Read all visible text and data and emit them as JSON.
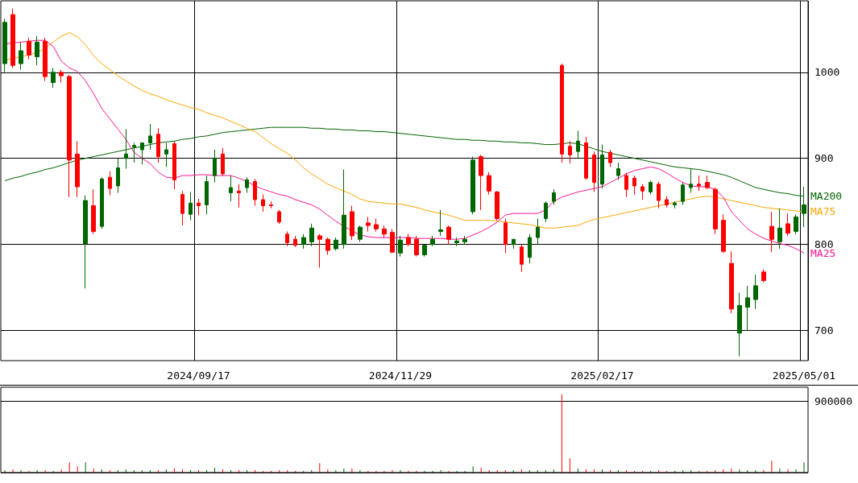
{
  "chart_data": [
    {
      "type": "candlestick",
      "categories": [
        null,
        null,
        null,
        null,
        null,
        null,
        null,
        null,
        null,
        null,
        null,
        null,
        null,
        null,
        null,
        null,
        null,
        null,
        null,
        null,
        null,
        null,
        null,
        null,
        "2024/09/17",
        null,
        null,
        null,
        null,
        null,
        null,
        null,
        null,
        null,
        null,
        null,
        null,
        null,
        null,
        null,
        null,
        null,
        null,
        null,
        null,
        null,
        null,
        null,
        null,
        "2024/11/29",
        null,
        null,
        null,
        null,
        null,
        null,
        null,
        null,
        null,
        null,
        null,
        null,
        null,
        null,
        null,
        null,
        null,
        null,
        null,
        null,
        null,
        null,
        null,
        null,
        "2025/02/17",
        null,
        null,
        null,
        null,
        null,
        null,
        null,
        null,
        null,
        null,
        null,
        null,
        null,
        null,
        null,
        null,
        null,
        null,
        null,
        null,
        null,
        null,
        null,
        null,
        "2025/05/01"
      ],
      "ohlc": [
        [
          1010,
          1062,
          1000,
          1058
        ],
        [
          1067,
          1074,
          1005,
          1008
        ],
        [
          1010,
          1035,
          1003,
          1025
        ],
        [
          1036,
          1040,
          1015,
          1020
        ],
        [
          1018,
          1042,
          1008,
          1035
        ],
        [
          1036,
          1040,
          990,
          995
        ],
        [
          988,
          1005,
          982,
          1000
        ],
        [
          1000,
          1003,
          988,
          996
        ],
        [
          995,
          997,
          855,
          898
        ],
        [
          905,
          920,
          855,
          867
        ],
        [
          801,
          857,
          749,
          851
        ],
        [
          845,
          864,
          812,
          815
        ],
        [
          821,
          878,
          818,
          876
        ],
        [
          878,
          885,
          857,
          865
        ],
        [
          868,
          900,
          860,
          889
        ],
        [
          900,
          934,
          888,
          905
        ],
        [
          913,
          918,
          895,
          915
        ],
        [
          910,
          918,
          893,
          918
        ],
        [
          918,
          940,
          910,
          926
        ],
        [
          928,
          935,
          895,
          902
        ],
        [
          905,
          918,
          890,
          910
        ],
        [
          917,
          920,
          864,
          875
        ],
        [
          858,
          862,
          822,
          836
        ],
        [
          835,
          861,
          828,
          848
        ],
        [
          848,
          853,
          834,
          845
        ],
        [
          846,
          880,
          835,
          873
        ],
        [
          880,
          910,
          872,
          900
        ],
        [
          905,
          912,
          880,
          882
        ],
        [
          860,
          880,
          850,
          866
        ],
        [
          862,
          870,
          843,
          860
        ],
        [
          866,
          878,
          860,
          875
        ],
        [
          873,
          876,
          845,
          852
        ],
        [
          852,
          858,
          838,
          845
        ],
        [
          846,
          850,
          842,
          845
        ],
        [
          838,
          840,
          824,
          826
        ],
        [
          812,
          815,
          798,
          802
        ],
        [
          806,
          810,
          797,
          799
        ],
        [
          800,
          812,
          795,
          808
        ],
        [
          803,
          824,
          798,
          819
        ],
        [
          810,
          812,
          773,
          806
        ],
        [
          806,
          808,
          788,
          793
        ],
        [
          795,
          808,
          793,
          805
        ],
        [
          800,
          887,
          795,
          834
        ],
        [
          838,
          845,
          805,
          810
        ],
        [
          806,
          822,
          803,
          820
        ],
        [
          825,
          832,
          815,
          822
        ],
        [
          823,
          830,
          815,
          818
        ],
        [
          818,
          822,
          808,
          812
        ],
        [
          814,
          818,
          790,
          791
        ],
        [
          790,
          810,
          786,
          805
        ],
        [
          808,
          812,
          798,
          800
        ],
        [
          806,
          810,
          786,
          788
        ],
        [
          788,
          800,
          786,
          799
        ],
        [
          800,
          810,
          798,
          806
        ],
        [
          815,
          840,
          810,
          817
        ],
        [
          820,
          822,
          800,
          806
        ],
        [
          802,
          808,
          798,
          804
        ],
        [
          803,
          810,
          800,
          806
        ],
        [
          838,
          902,
          835,
          898
        ],
        [
          902,
          904,
          840,
          880
        ],
        [
          880,
          884,
          858,
          862
        ],
        [
          861,
          862,
          828,
          830
        ],
        [
          825,
          830,
          790,
          800
        ],
        [
          800,
          806,
          795,
          806
        ],
        [
          797,
          800,
          768,
          777
        ],
        [
          785,
          812,
          778,
          808
        ],
        [
          808,
          830,
          800,
          820
        ],
        [
          830,
          850,
          826,
          848
        ],
        [
          850,
          864,
          846,
          860
        ],
        [
          1008,
          1010,
          895,
          905
        ],
        [
          914,
          920,
          894,
          904
        ],
        [
          908,
          932,
          900,
          920
        ],
        [
          918,
          925,
          875,
          877
        ],
        [
          904,
          908,
          861,
          872
        ],
        [
          870,
          916,
          865,
          904
        ],
        [
          907,
          910,
          890,
          895
        ],
        [
          880,
          895,
          875,
          888
        ],
        [
          880,
          883,
          855,
          864
        ],
        [
          877,
          880,
          858,
          868
        ],
        [
          867,
          870,
          852,
          862
        ],
        [
          861,
          874,
          858,
          872
        ],
        [
          870,
          873,
          842,
          851
        ],
        [
          852,
          856,
          843,
          846
        ],
        [
          846,
          850,
          842,
          848
        ],
        [
          850,
          872,
          846,
          869
        ],
        [
          866,
          888,
          860,
          870
        ],
        [
          870,
          880,
          862,
          868
        ],
        [
          872,
          880,
          864,
          866
        ],
        [
          864,
          866,
          812,
          818
        ],
        [
          828,
          835,
          790,
          792
        ],
        [
          778,
          792,
          720,
          725
        ],
        [
          697,
          744,
          670,
          729
        ],
        [
          727,
          752,
          700,
          738
        ],
        [
          736,
          765,
          725,
          752
        ],
        [
          768,
          771,
          756,
          758
        ],
        [
          821,
          838,
          791,
          806
        ],
        [
          803,
          842,
          795,
          819
        ],
        [
          824,
          836,
          810,
          813
        ],
        [
          815,
          835,
          812,
          832
        ],
        [
          836,
          867,
          820,
          846
        ]
      ],
      "colors": [
        "#006600",
        "#ff0000",
        "#006600",
        "#ff0000",
        "#006600",
        "#ff0000",
        "#006600",
        "#ff0000",
        "#ff0000",
        "#ff0000",
        "#006600",
        "#ff0000",
        "#006600",
        "#ff0000",
        "#006600",
        "#006600",
        "#006600",
        "#006600",
        "#006600",
        "#ff0000",
        "#006600",
        "#ff0000",
        "#ff0000",
        "#006600",
        "#ff0000",
        "#006600",
        "#006600",
        "#ff0000",
        "#006600",
        "#ff0000",
        "#006600",
        "#ff0000",
        "#ff0000",
        "#ff0000",
        "#ff0000",
        "#ff0000",
        "#ff0000",
        "#006600",
        "#006600",
        "#ff0000",
        "#ff0000",
        "#006600",
        "#006600",
        "#ff0000",
        "#006600",
        "#ff0000",
        "#ff0000",
        "#ff0000",
        "#ff0000",
        "#006600",
        "#ff0000",
        "#ff0000",
        "#006600",
        "#006600",
        "#006600",
        "#ff0000",
        "#006600",
        "#006600",
        "#006600",
        "#ff0000",
        "#ff0000",
        "#ff0000",
        "#ff0000",
        "#006600",
        "#ff0000",
        "#006600",
        "#006600",
        "#006600",
        "#006600",
        "#ff0000",
        "#ff0000",
        "#006600",
        "#ff0000",
        "#ff0000",
        "#006600",
        "#ff0000",
        "#006600",
        "#ff0000",
        "#ff0000",
        "#ff0000",
        "#006600",
        "#ff0000",
        "#ff0000",
        "#006600",
        "#006600",
        "#006600",
        "#ff0000",
        "#ff0000",
        "#ff0000",
        "#ff0000",
        "#ff0000",
        "#006600",
        "#006600",
        "#006600",
        "#ff0000",
        "#ff0000",
        "#006600",
        "#ff0000",
        "#006600",
        "#006600"
      ],
      "series": [
        {
          "name": "MA200",
          "type": "line",
          "color": "#006400",
          "values": [
            874,
            877,
            879,
            882,
            884,
            887,
            889,
            892,
            895,
            898,
            900,
            902,
            904,
            906,
            908,
            910,
            912,
            914,
            916,
            918,
            919,
            920,
            922,
            923,
            925,
            926,
            928,
            930,
            931,
            932,
            933,
            934,
            935,
            936,
            936,
            936,
            936,
            936,
            935,
            935,
            934,
            934,
            933,
            933,
            932,
            932,
            931,
            931,
            930,
            929,
            928,
            927,
            926,
            925,
            924,
            923,
            922,
            922,
            921,
            921,
            920,
            920,
            919,
            919,
            918,
            918,
            917,
            916,
            916,
            917,
            918,
            917,
            914,
            911,
            908,
            906,
            904,
            902,
            900,
            898,
            896,
            894,
            892,
            890,
            889,
            888,
            887,
            885,
            883,
            881,
            878,
            874,
            870,
            866,
            864,
            862,
            860,
            859,
            857,
            856
          ]
        },
        {
          "name": "MA75",
          "type": "line",
          "color": "#ffa500",
          "values": [
            1014,
            1016,
            1018,
            1020,
            1023,
            1028,
            1035,
            1042,
            1046,
            1041,
            1032,
            1019,
            1010,
            1003,
            996,
            990,
            984,
            979,
            975,
            972,
            968,
            965,
            962,
            959,
            957,
            953,
            950,
            947,
            943,
            939,
            935,
            931,
            924,
            917,
            911,
            906,
            898,
            889,
            882,
            876,
            870,
            866,
            862,
            858,
            853,
            850,
            849,
            848,
            847,
            847,
            845,
            843,
            840,
            838,
            836,
            834,
            831,
            828,
            828,
            828,
            828,
            827,
            826,
            825,
            824,
            823,
            821,
            819,
            819,
            820,
            821,
            822,
            826,
            829,
            831,
            833,
            835,
            837,
            839,
            841,
            843,
            845,
            847,
            849,
            851,
            853,
            855,
            856,
            855,
            853,
            851,
            849,
            847,
            845,
            843,
            842,
            841,
            840,
            839,
            838
          ]
        },
        {
          "name": "MA25",
          "type": "line",
          "color": "#ff1493",
          "values": [
            1033,
            1034,
            1035,
            1036,
            1037,
            1037,
            1030,
            1013,
            1005,
            1001,
            990,
            975,
            958,
            946,
            934,
            922,
            907,
            900,
            894,
            884,
            878,
            877,
            880,
            880,
            881,
            881,
            880,
            880,
            880,
            877,
            873,
            868,
            864,
            861,
            858,
            856,
            852,
            849,
            846,
            841,
            834,
            827,
            821,
            816,
            811,
            809,
            808,
            808,
            808,
            808,
            808,
            807,
            807,
            807,
            807,
            806,
            806,
            807,
            811,
            815,
            820,
            826,
            834,
            836,
            836,
            836,
            836,
            840,
            850,
            855,
            858,
            861,
            863,
            865,
            867,
            872,
            877,
            882,
            886,
            888,
            890,
            888,
            883,
            877,
            872,
            868,
            867,
            867,
            864,
            855,
            838,
            828,
            818,
            812,
            807,
            804,
            801,
            799,
            795,
            790
          ]
        }
      ],
      "ylim": [
        665,
        1083
      ],
      "yticks": [
        700,
        800,
        900,
        1000
      ],
      "grid": true,
      "marker": "none"
    },
    {
      "type": "bar",
      "ylim": [
        0,
        1080000
      ],
      "yticks": [
        {
          "value": 0,
          "label": null
        },
        900000
      ],
      "grid": "y",
      "categories": [
        null,
        null,
        null,
        null,
        null,
        null,
        null,
        null,
        null,
        null,
        null,
        null,
        null,
        null,
        null,
        null,
        null,
        null,
        null,
        null,
        null,
        null,
        null,
        null,
        null,
        null,
        null,
        null,
        null,
        null,
        null,
        null,
        null,
        null,
        null,
        null,
        null,
        null,
        null,
        null,
        null,
        null,
        null,
        null,
        null,
        null,
        null,
        null,
        null,
        null,
        null,
        null,
        null,
        null,
        null,
        null,
        null,
        null,
        null,
        null,
        null,
        null,
        null,
        null,
        null,
        null,
        null,
        null,
        null,
        null,
        null,
        null,
        null,
        null,
        null,
        null,
        null,
        null,
        null,
        null,
        null,
        null,
        null,
        null,
        null,
        null,
        null,
        null,
        null,
        null,
        null,
        null,
        null,
        null,
        null,
        null,
        null,
        null,
        null,
        null
      ],
      "values": [
        30000,
        40000,
        30000,
        20000,
        30000,
        30000,
        20000,
        40000,
        130000,
        80000,
        130000,
        50000,
        40000,
        30000,
        30000,
        40000,
        30000,
        30000,
        30000,
        30000,
        40000,
        50000,
        40000,
        30000,
        30000,
        30000,
        60000,
        40000,
        30000,
        30000,
        30000,
        30000,
        20000,
        20000,
        30000,
        30000,
        20000,
        20000,
        30000,
        120000,
        40000,
        30000,
        50000,
        50000,
        30000,
        20000,
        20000,
        20000,
        30000,
        30000,
        20000,
        20000,
        20000,
        20000,
        30000,
        20000,
        20000,
        20000,
        80000,
        60000,
        30000,
        30000,
        30000,
        30000,
        40000,
        30000,
        30000,
        30000,
        40000,
        990000,
        180000,
        50000,
        40000,
        40000,
        40000,
        30000,
        30000,
        30000,
        20000,
        20000,
        20000,
        30000,
        20000,
        20000,
        30000,
        30000,
        20000,
        20000,
        30000,
        40000,
        50000,
        40000,
        30000,
        30000,
        30000,
        150000,
        50000,
        40000,
        40000,
        130000
      ],
      "colors": [
        "#006600",
        "#ff0000",
        "#006600",
        "#ff0000",
        "#006600",
        "#ff0000",
        "#006600",
        "#ff0000",
        "#ff0000",
        "#ff0000",
        "#006600",
        "#ff0000",
        "#006600",
        "#ff0000",
        "#006600",
        "#006600",
        "#006600",
        "#006600",
        "#006600",
        "#ff0000",
        "#006600",
        "#ff0000",
        "#ff0000",
        "#006600",
        "#ff0000",
        "#006600",
        "#006600",
        "#ff0000",
        "#006600",
        "#ff0000",
        "#006600",
        "#ff0000",
        "#ff0000",
        "#ff0000",
        "#ff0000",
        "#ff0000",
        "#ff0000",
        "#006600",
        "#006600",
        "#ff0000",
        "#ff0000",
        "#006600",
        "#006600",
        "#ff0000",
        "#006600",
        "#ff0000",
        "#ff0000",
        "#ff0000",
        "#ff0000",
        "#006600",
        "#ff0000",
        "#ff0000",
        "#006600",
        "#006600",
        "#006600",
        "#ff0000",
        "#006600",
        "#006600",
        "#006600",
        "#ff0000",
        "#ff0000",
        "#ff0000",
        "#ff0000",
        "#006600",
        "#ff0000",
        "#006600",
        "#006600",
        "#006600",
        "#006600",
        "#ff0000",
        "#ff0000",
        "#006600",
        "#ff0000",
        "#ff0000",
        "#006600",
        "#ff0000",
        "#006600",
        "#ff0000",
        "#ff0000",
        "#ff0000",
        "#006600",
        "#ff0000",
        "#ff0000",
        "#006600",
        "#006600",
        "#006600",
        "#ff0000",
        "#ff0000",
        "#ff0000",
        "#ff0000",
        "#ff0000",
        "#006600",
        "#006600",
        "#006600",
        "#ff0000",
        "#ff0000",
        "#006600",
        "#ff0000",
        "#006600",
        "#006600"
      ]
    }
  ]
}
